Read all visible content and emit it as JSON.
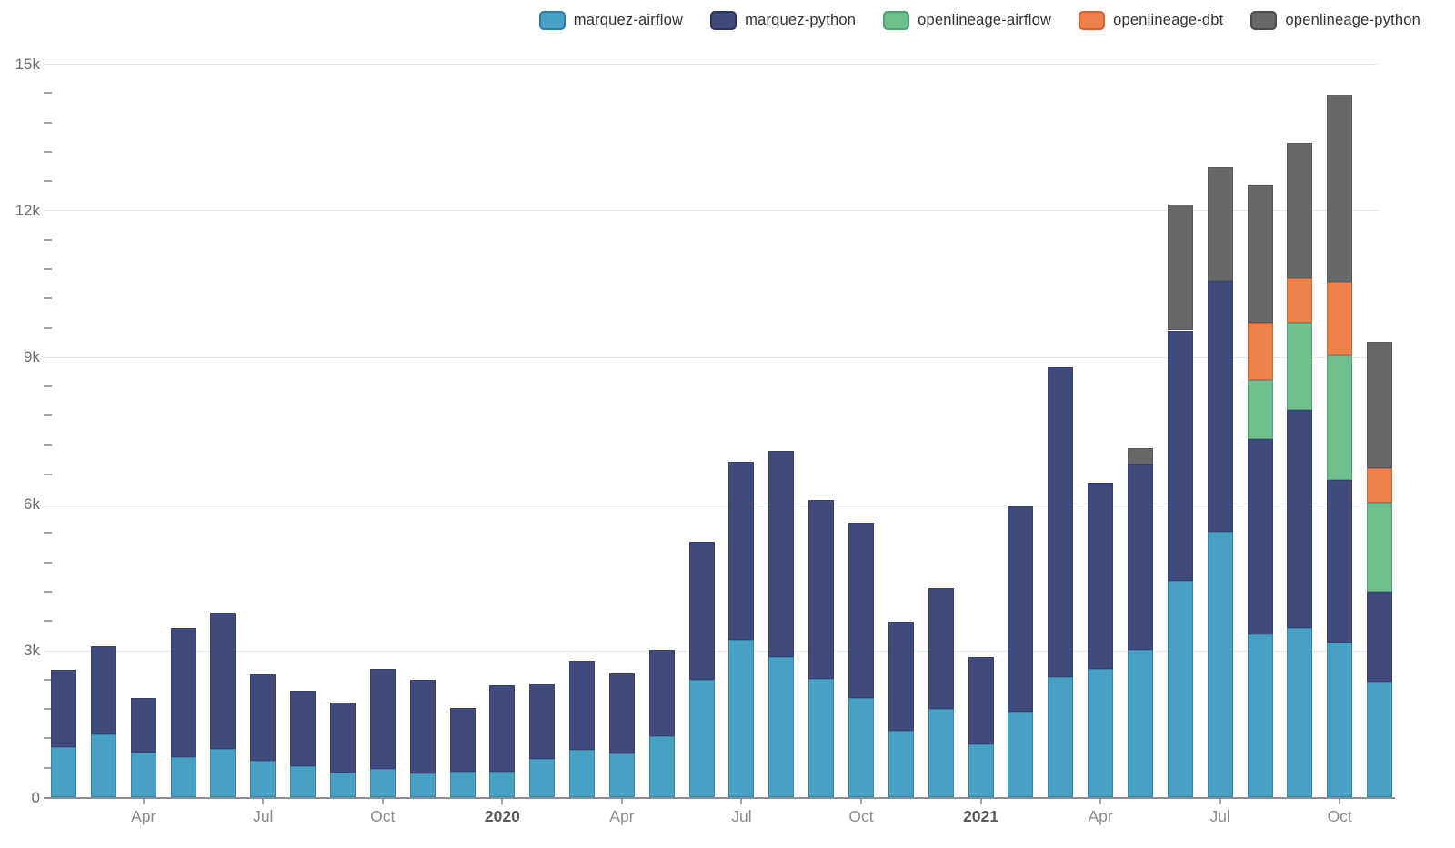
{
  "legend": {
    "items": [
      {
        "label": "marquez-airflow",
        "color": "#47a1c4",
        "border": "#2d7ea6"
      },
      {
        "label": "marquez-python",
        "color": "#404a7c",
        "border": "#2a3461"
      },
      {
        "label": "openlineage-airflow",
        "color": "#6fbe8e",
        "border": "#4da271"
      },
      {
        "label": "openlineage-dbt",
        "color": "#ee8049",
        "border": "#d2622e"
      },
      {
        "label": "openlineage-python",
        "color": "#686868",
        "border": "#4d4d4d"
      }
    ]
  },
  "chart_data": {
    "type": "bar",
    "stacked": true,
    "title": "",
    "xlabel": "",
    "ylabel": "",
    "ylim": [
      0,
      15000
    ],
    "y_major_step": 3000,
    "y_minor_step": 600,
    "y_tick_labels": [
      "0",
      "3k",
      "6k",
      "9k",
      "12k",
      "15k"
    ],
    "grid": true,
    "legend_position": "top-right",
    "categories": [
      "Feb 2019",
      "Mar 2019",
      "Apr 2019",
      "May 2019",
      "Jun 2019",
      "Jul 2019",
      "Aug 2019",
      "Sep 2019",
      "Oct 2019",
      "Nov 2019",
      "Dec 2019",
      "Jan 2020",
      "Feb 2020",
      "Mar 2020",
      "Apr 2020",
      "May 2020",
      "Jun 2020",
      "Jul 2020",
      "Aug 2020",
      "Sep 2020",
      "Oct 2020",
      "Nov 2020",
      "Dec 2020",
      "Jan 2021",
      "Feb 2021",
      "Mar 2021",
      "Apr 2021",
      "May 2021",
      "Jun 2021",
      "Jul 2021",
      "Aug 2021",
      "Sep 2021",
      "Oct 2021",
      "Nov 2021"
    ],
    "x_tick_labels": [
      {
        "index": 2,
        "label": "Apr",
        "bold": false
      },
      {
        "index": 5,
        "label": "Jul",
        "bold": false
      },
      {
        "index": 8,
        "label": "Oct",
        "bold": false
      },
      {
        "index": 11,
        "label": "2020",
        "bold": true
      },
      {
        "index": 14,
        "label": "Apr",
        "bold": false
      },
      {
        "index": 17,
        "label": "Jul",
        "bold": false
      },
      {
        "index": 20,
        "label": "Oct",
        "bold": false
      },
      {
        "index": 23,
        "label": "2021",
        "bold": true
      },
      {
        "index": 26,
        "label": "Apr",
        "bold": false
      },
      {
        "index": 29,
        "label": "Jul",
        "bold": false
      },
      {
        "index": 32,
        "label": "Oct",
        "bold": false
      }
    ],
    "series": [
      {
        "name": "marquez-airflow",
        "color": "#47a1c4",
        "values": [
          1020,
          1290,
          910,
          815,
          985,
          750,
          630,
          510,
          575,
          480,
          530,
          520,
          780,
          975,
          900,
          1240,
          2390,
          3210,
          2870,
          2420,
          2035,
          1350,
          1800,
          1085,
          1750,
          2450,
          2615,
          3005,
          4415,
          5435,
          3320,
          3455,
          3160,
          2355
        ]
      },
      {
        "name": "marquez-python",
        "color": "#404a7c",
        "values": [
          1580,
          1805,
          1110,
          2650,
          2790,
          1755,
          1550,
          1425,
          2045,
          1915,
          1300,
          1775,
          1525,
          1820,
          1635,
          1765,
          2840,
          3645,
          4205,
          3650,
          3575,
          2240,
          2480,
          1785,
          4200,
          6335,
          3820,
          3800,
          5130,
          5115,
          4000,
          4460,
          3330,
          1850
        ]
      },
      {
        "name": "openlineage-airflow",
        "color": "#6fbe8e",
        "values": [
          0,
          0,
          0,
          0,
          0,
          0,
          0,
          0,
          0,
          0,
          0,
          0,
          0,
          0,
          0,
          0,
          0,
          0,
          0,
          0,
          0,
          0,
          0,
          0,
          0,
          0,
          0,
          0,
          0,
          0,
          1220,
          1785,
          2550,
          1820
        ]
      },
      {
        "name": "openlineage-dbt",
        "color": "#ee8049",
        "values": [
          0,
          0,
          0,
          0,
          0,
          0,
          0,
          0,
          0,
          0,
          0,
          0,
          0,
          0,
          0,
          0,
          0,
          0,
          0,
          0,
          0,
          0,
          0,
          0,
          0,
          0,
          0,
          0,
          0,
          0,
          1165,
          910,
          1500,
          695
        ]
      },
      {
        "name": "openlineage-python",
        "color": "#686868",
        "values": [
          0,
          0,
          0,
          0,
          0,
          0,
          0,
          0,
          0,
          0,
          0,
          0,
          0,
          0,
          0,
          0,
          0,
          0,
          0,
          0,
          0,
          0,
          0,
          0,
          0,
          0,
          0,
          340,
          2580,
          2335,
          2810,
          2780,
          3820,
          2595
        ]
      }
    ]
  }
}
